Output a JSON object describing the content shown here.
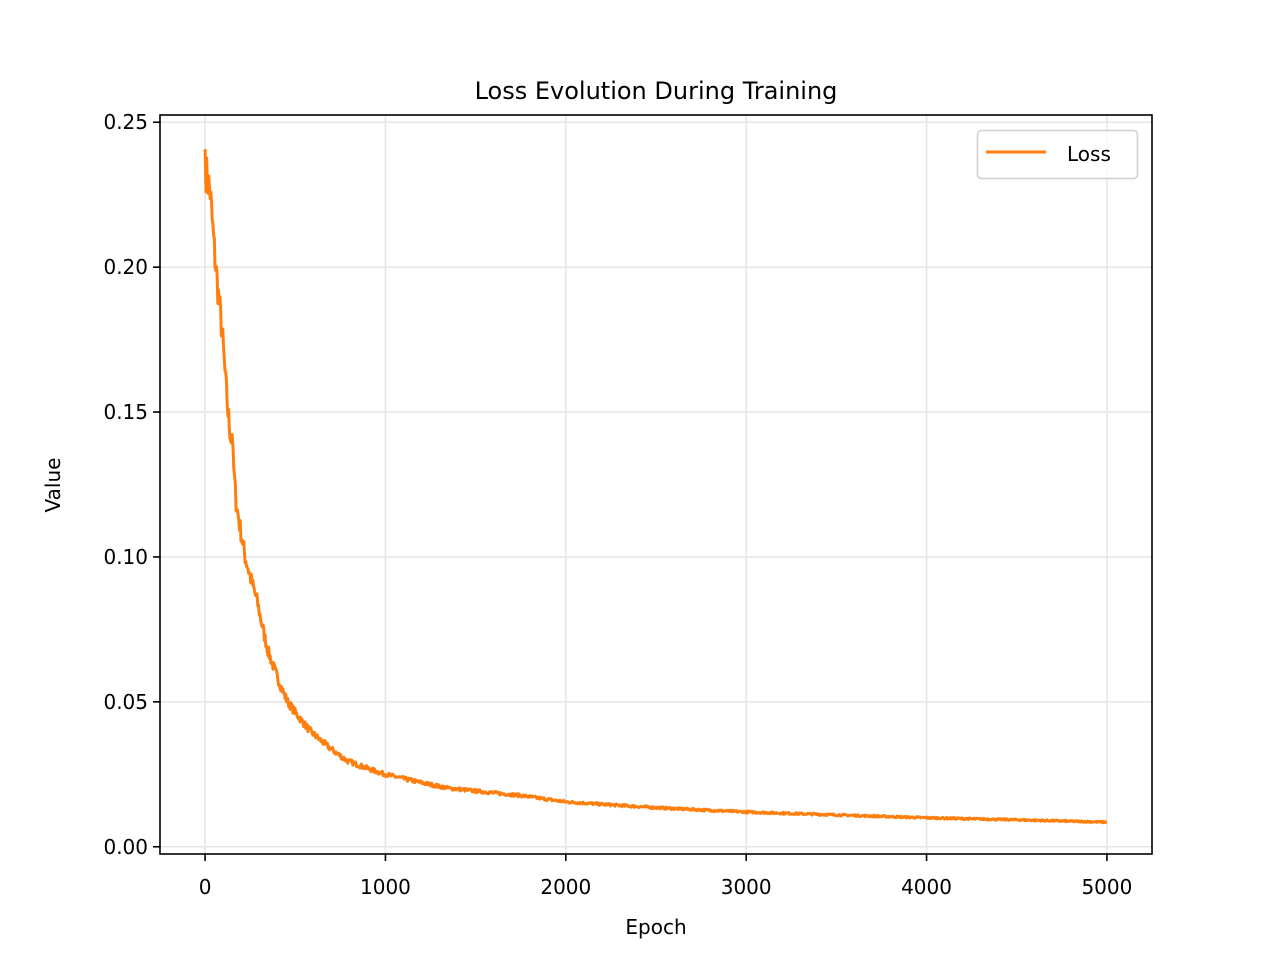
{
  "chart_data": {
    "type": "line",
    "title": "Loss Evolution During Training",
    "xlabel": "Epoch",
    "ylabel": "Value",
    "xlim": [
      -250,
      5250
    ],
    "ylim": [
      -0.0025,
      0.2525
    ],
    "xticks": [
      0,
      1000,
      2000,
      3000,
      4000,
      5000
    ],
    "xtick_labels": [
      "0",
      "1000",
      "2000",
      "3000",
      "4000",
      "5000"
    ],
    "yticks": [
      0.0,
      0.05,
      0.1,
      0.15,
      0.2,
      0.25
    ],
    "ytick_labels": [
      "0.00",
      "0.05",
      "0.10",
      "0.15",
      "0.20",
      "0.25"
    ],
    "grid": true,
    "legend": "top-right",
    "series": [
      {
        "name": "Loss",
        "color": "#ff7f0e",
        "x": [
          0,
          5,
          28,
          55,
          94,
          127,
          145,
          150,
          155,
          172,
          222,
          288,
          349,
          455,
          582,
          787,
          987,
          1341,
          1763,
          2000,
          2500,
          3000,
          3500,
          4000,
          4500,
          5000
        ],
        "y": [
          0.2407,
          0.233,
          0.226,
          0.203,
          0.178,
          0.15,
          0.14,
          0.144,
          0.134,
          0.119,
          0.1,
          0.085,
          0.0676,
          0.0503,
          0.04,
          0.0297,
          0.0252,
          0.0203,
          0.0176,
          0.0155,
          0.0135,
          0.012,
          0.011,
          0.01,
          0.0093,
          0.0085
        ]
      }
    ]
  }
}
